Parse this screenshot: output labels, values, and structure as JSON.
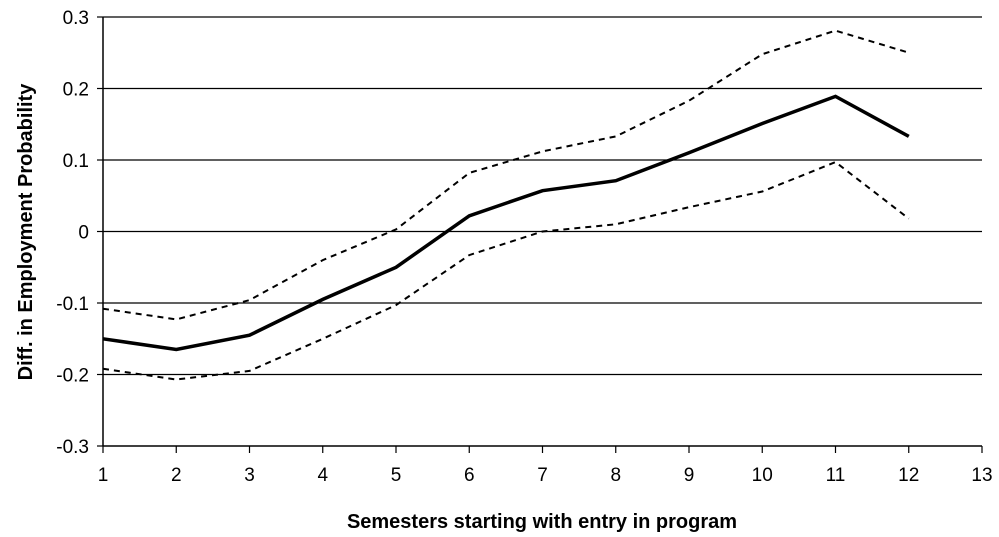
{
  "chart_data": {
    "type": "line",
    "title": "",
    "xlabel": "Semesters starting with entry in program",
    "ylabel": "Diff. in Employment Probability",
    "xlim": [
      1,
      13
    ],
    "ylim": [
      -0.3,
      0.3
    ],
    "x_ticks": [
      "1",
      "2",
      "3",
      "4",
      "5",
      "6",
      "7",
      "8",
      "9",
      "10",
      "11",
      "12",
      "13"
    ],
    "y_ticks": [
      "0.3",
      "0.2",
      "0.1",
      "0",
      "-0.1",
      "-0.2",
      "-0.3"
    ],
    "y_tick_values": [
      0.3,
      0.2,
      0.1,
      0,
      -0.1,
      -0.2,
      -0.3
    ],
    "grid": "horizontal",
    "legend": "none",
    "x": [
      1,
      2,
      3,
      4,
      5,
      6,
      7,
      8,
      9,
      10,
      11,
      12
    ],
    "series": [
      {
        "style": "solid",
        "values": [
          -0.15,
          -0.165,
          -0.145,
          -0.095,
          -0.05,
          0.022,
          0.057,
          0.071,
          0.11,
          0.151,
          0.189,
          0.133
        ]
      },
      {
        "style": "dotted",
        "values": [
          -0.108,
          -0.123,
          -0.096,
          -0.04,
          0.003,
          0.082,
          0.112,
          0.133,
          0.183,
          0.248,
          0.281,
          0.25
        ]
      },
      {
        "style": "dotted",
        "values": [
          -0.192,
          -0.207,
          -0.195,
          -0.15,
          -0.103,
          -0.033,
          0.0,
          0.01,
          0.034,
          0.056,
          0.097,
          0.018
        ]
      }
    ]
  }
}
